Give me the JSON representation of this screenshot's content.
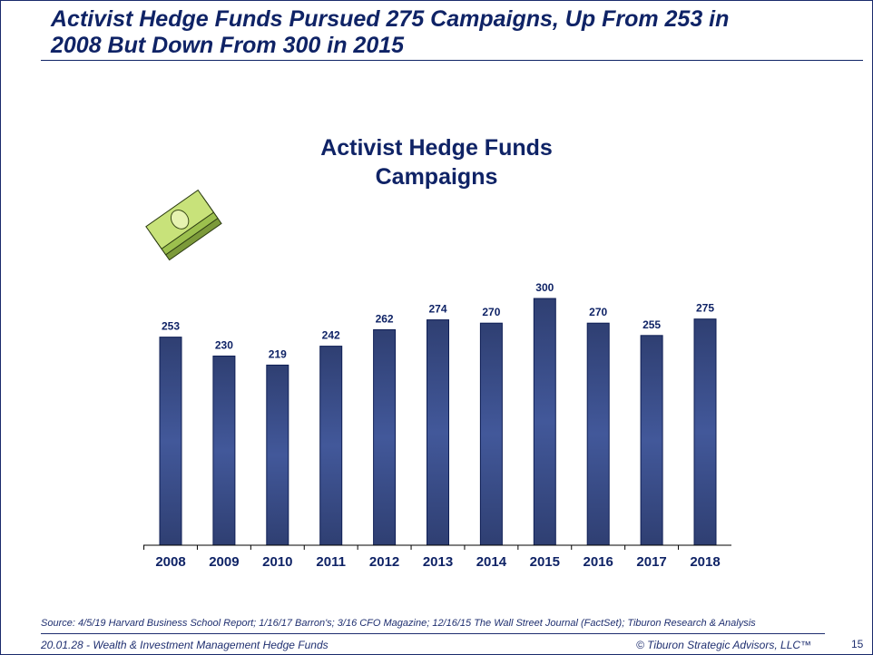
{
  "slide": {
    "title_line1": "Activist Hedge Funds Pursued 275 Campaigns, Up From 253 in",
    "title_line2": "2008 But Down From 300 in 2015",
    "source": "Source:  4/5/19 Harvard Business School Report; 1/16/17 Barron's; 3/16 CFO Magazine; 12/16/15 The Wall Street Journal (FactSet); Tiburon Research & Analysis",
    "footer_left": "20.01.28 - Wealth & Investment Management  Hedge Funds",
    "footer_right": "© Tiburon Strategic Advisors, LLC™",
    "page_number": "15",
    "icon": "money-stack-icon"
  },
  "chart_data": {
    "type": "bar",
    "title_line1": "Activist Hedge Funds",
    "title_line2": "Campaigns",
    "categories": [
      "2008",
      "2009",
      "2010",
      "2011",
      "2012",
      "2013",
      "2014",
      "2015",
      "2016",
      "2017",
      "2018"
    ],
    "values": [
      253,
      230,
      219,
      242,
      262,
      274,
      270,
      300,
      270,
      255,
      275
    ],
    "xlabel": "",
    "ylabel": "",
    "ylim": [
      0,
      300
    ],
    "grid": false,
    "bar_color": "#34477f"
  }
}
